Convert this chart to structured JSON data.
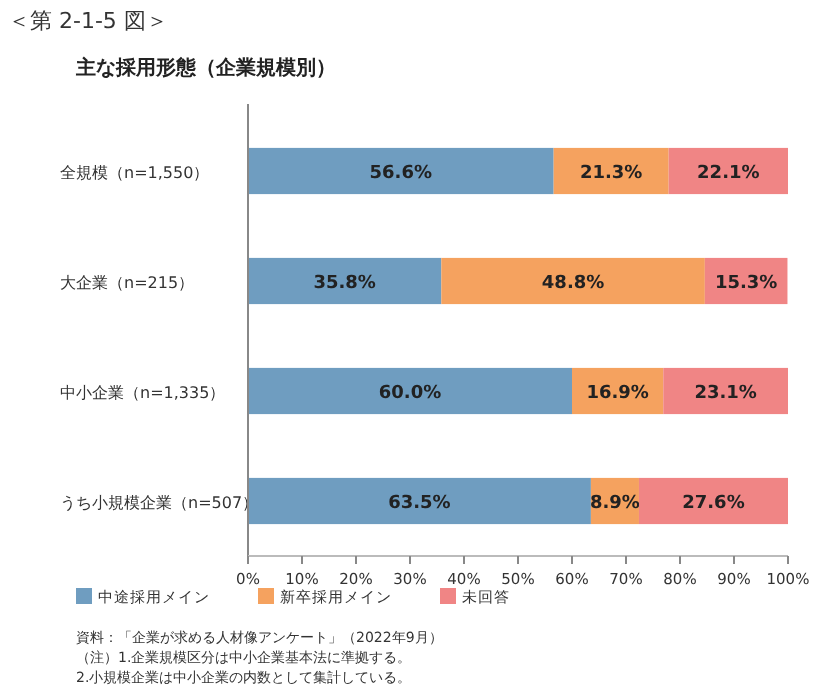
{
  "chart_data": {
    "type": "bar",
    "orientation": "horizontal",
    "stacked": true,
    "title": "＜第 2-1-5 図＞",
    "subtitle": "主な採用形態（企業規模別）",
    "categories": [
      "全規模（n=1,550）",
      "大企業（n=215）",
      "中小企業（n=1,335）",
      "うち小規模企業（n=507）"
    ],
    "series": [
      {
        "name": "中途採用メイン",
        "color": "#6f9dc0",
        "values": [
          56.6,
          35.8,
          60.0,
          63.5
        ],
        "value_labels": [
          "56.6%",
          "35.8%",
          "60.0%",
          "63.5%"
        ]
      },
      {
        "name": "新卒採用メイン",
        "color": "#f5a25f",
        "values": [
          21.3,
          48.8,
          16.9,
          8.9
        ],
        "value_labels": [
          "21.3%",
          "48.8%",
          "16.9%",
          "8.9%"
        ]
      },
      {
        "name": "未回答",
        "color": "#f08585",
        "values": [
          22.1,
          15.3,
          23.1,
          27.6
        ],
        "value_labels": [
          "22.1%",
          "15.3%",
          "23.1%",
          "27.6%"
        ]
      }
    ],
    "xlim": [
      0,
      100
    ],
    "xticks": [
      {
        "value": 0,
        "label": "0%"
      },
      {
        "value": 10,
        "label": "10%"
      },
      {
        "value": 20,
        "label": "20%"
      },
      {
        "value": 30,
        "label": "30%"
      },
      {
        "value": 40,
        "label": "40%"
      },
      {
        "value": 50,
        "label": "50%"
      },
      {
        "value": 60,
        "label": "60%"
      },
      {
        "value": 70,
        "label": "70%"
      },
      {
        "value": 80,
        "label": "80%"
      },
      {
        "value": 90,
        "label": "90%"
      },
      {
        "value": 100,
        "label": "100%"
      }
    ],
    "legend": "bottom left",
    "annotations": [
      "資料：「企業が求める人材像アンケート」（2022年9月）",
      "（注）1.企業規模区分は中小企業基本法に準拠する。",
      "2.小規模企業は中小企業の内数として集計している。"
    ]
  }
}
